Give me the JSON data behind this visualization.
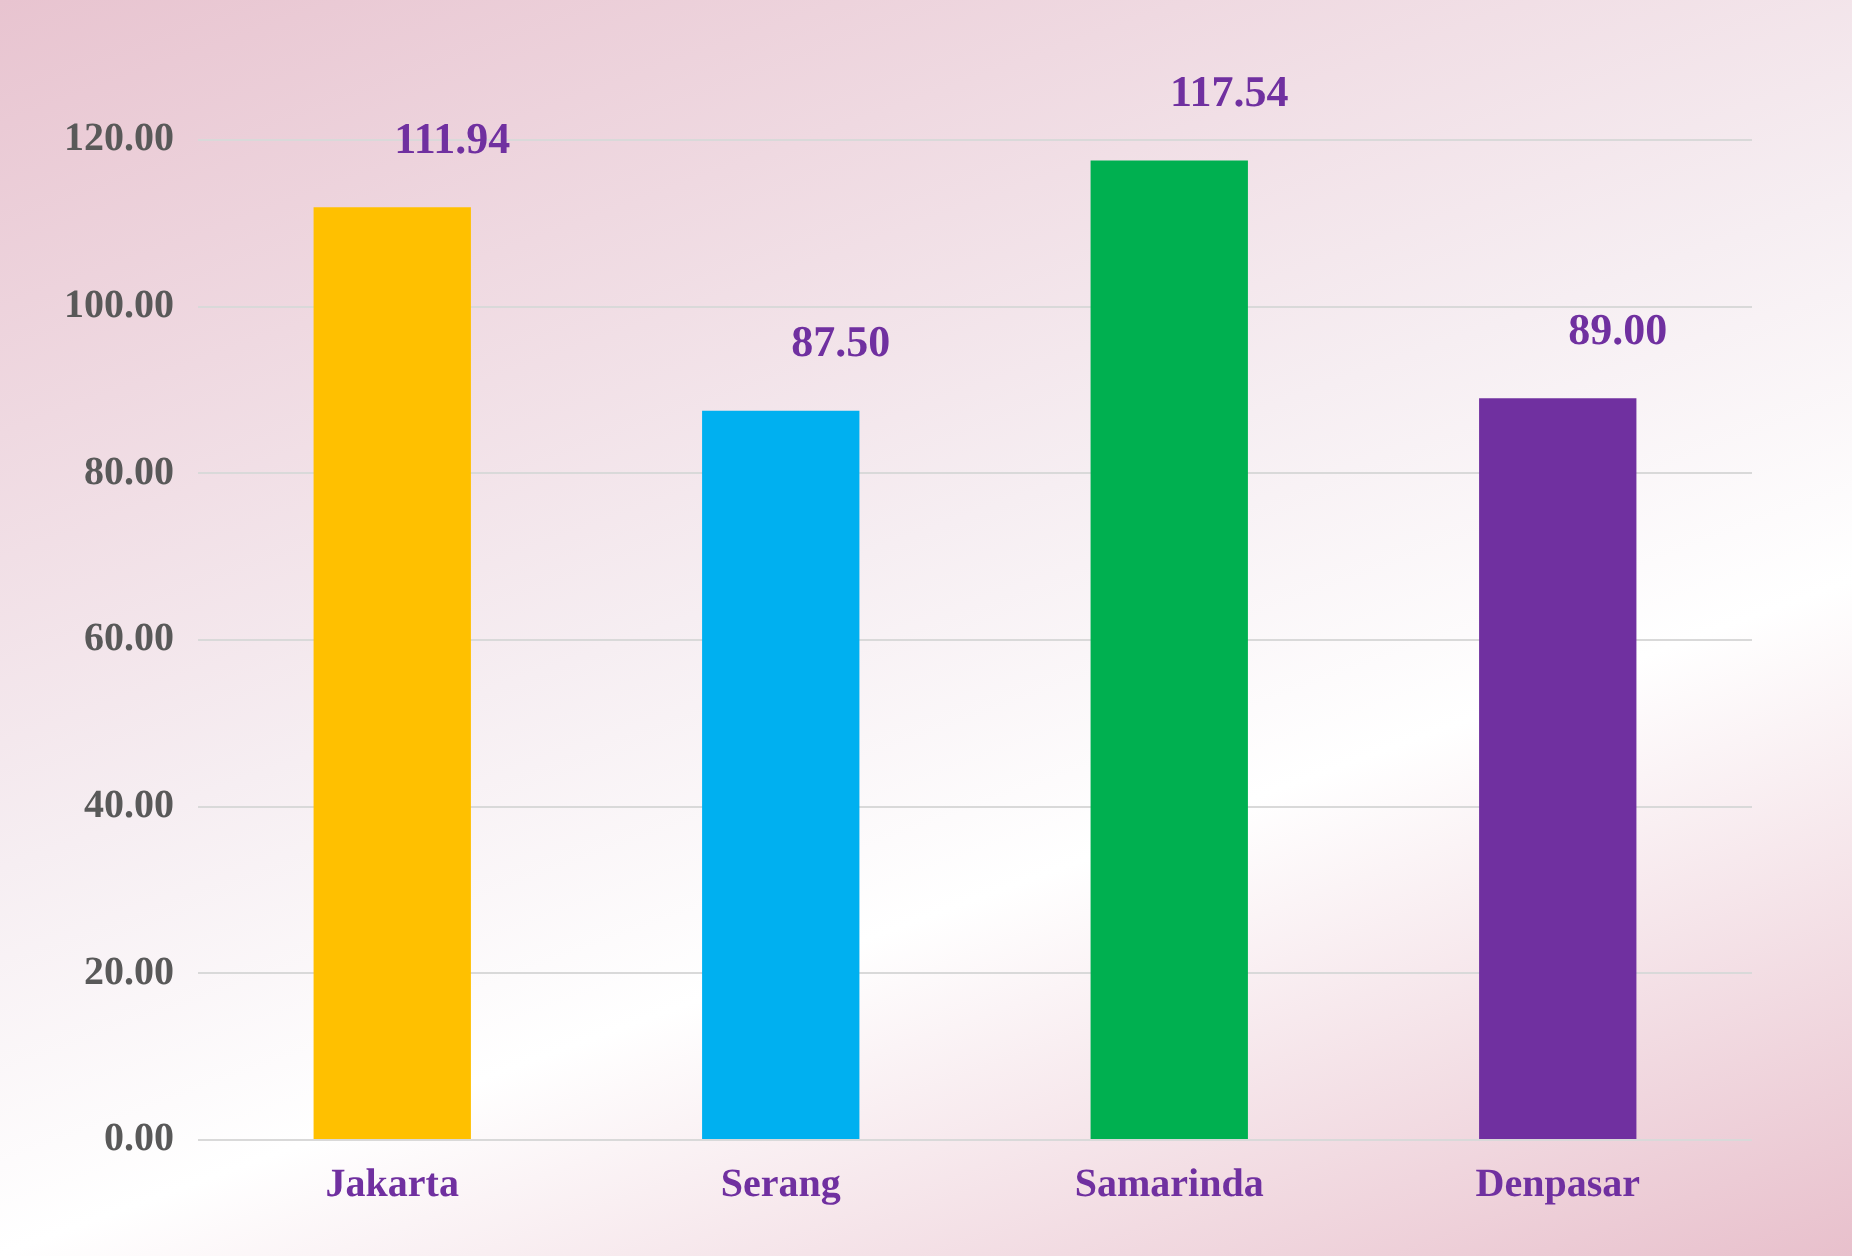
{
  "chart_data": {
    "type": "bar",
    "categories": [
      "Jakarta",
      "Serang",
      "Samarinda",
      "Denpasar"
    ],
    "values": [
      111.94,
      87.5,
      117.54,
      89.0
    ],
    "colors": [
      "#ffc000",
      "#00b0f0",
      "#00b050",
      "#7030a0"
    ],
    "value_labels": [
      "111.94",
      "87.50",
      "117.54",
      "89.00"
    ],
    "ylim": [
      0,
      120
    ],
    "yticks": [
      {
        "value": 0,
        "label": "0.00"
      },
      {
        "value": 20,
        "label": "20.00"
      },
      {
        "value": 40,
        "label": "40.00"
      },
      {
        "value": 60,
        "label": "60.00"
      },
      {
        "value": 80,
        "label": "80.00"
      },
      {
        "value": 100,
        "label": "100.00"
      },
      {
        "value": 120,
        "label": "120.00"
      }
    ],
    "grid": "y",
    "legend": false
  }
}
